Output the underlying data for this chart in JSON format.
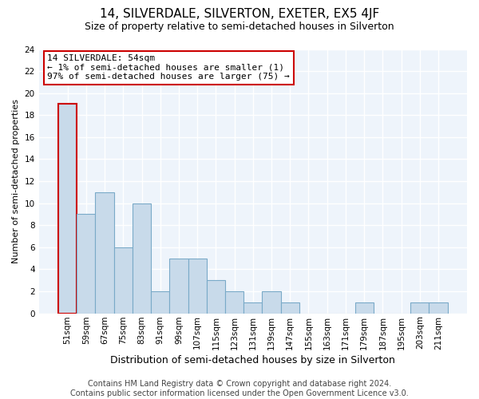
{
  "title": "14, SILVERDALE, SILVERTON, EXETER, EX5 4JF",
  "subtitle": "Size of property relative to semi-detached houses in Silverton",
  "xlabel": "Distribution of semi-detached houses by size in Silverton",
  "ylabel": "Number of semi-detached properties",
  "bar_color": "#c8daea",
  "bar_edge_color": "#7aaac8",
  "highlight_edge_color": "#cc0000",
  "annotation_box_edge": "#cc0000",
  "annotation_line1": "14 SILVERDALE: 54sqm",
  "annotation_line2": "← 1% of semi-detached houses are smaller (1)",
  "annotation_line3": "97% of semi-detached houses are larger (75) →",
  "categories": [
    "51sqm",
    "59sqm",
    "67sqm",
    "75sqm",
    "83sqm",
    "91sqm",
    "99sqm",
    "107sqm",
    "115sqm",
    "123sqm",
    "131sqm",
    "139sqm",
    "147sqm",
    "155sqm",
    "163sqm",
    "171sqm",
    "179sqm",
    "187sqm",
    "195sqm",
    "203sqm",
    "211sqm"
  ],
  "values": [
    19,
    9,
    11,
    6,
    10,
    2,
    5,
    5,
    3,
    2,
    1,
    2,
    1,
    0,
    0,
    0,
    1,
    0,
    0,
    1,
    1
  ],
  "highlight_index": 0,
  "ylim": [
    0,
    24
  ],
  "yticks": [
    0,
    2,
    4,
    6,
    8,
    10,
    12,
    14,
    16,
    18,
    20,
    22,
    24
  ],
  "footer_text": "Contains HM Land Registry data © Crown copyright and database right 2024.\nContains public sector information licensed under the Open Government Licence v3.0.",
  "title_fontsize": 11,
  "subtitle_fontsize": 9,
  "xlabel_fontsize": 9,
  "ylabel_fontsize": 8,
  "footer_fontsize": 7,
  "annotation_fontsize": 8,
  "tick_fontsize": 7.5
}
